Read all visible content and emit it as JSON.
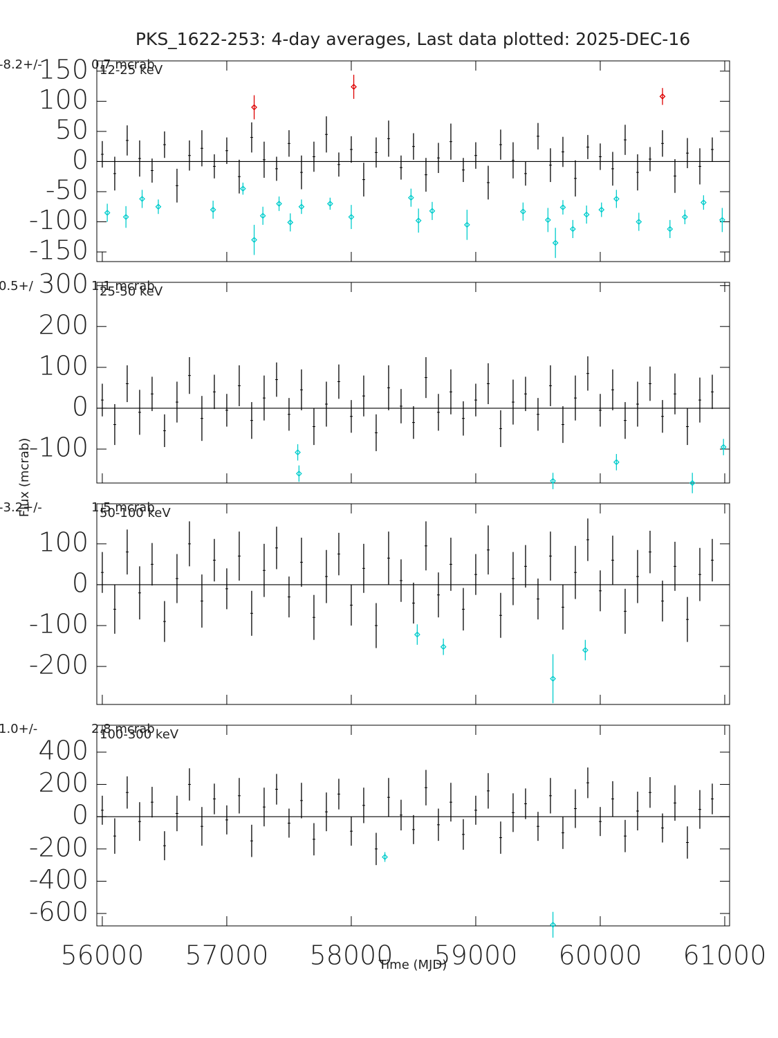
{
  "chart_data": [
    {
      "type": "errorbar",
      "title": "PKS_1622-253:  4-day averages,  Last data plotted: 2025-DEC-16",
      "ylabel": "Flux (mcrab)",
      "band": "12-25 keV",
      "stat_value": "-8.2+/-",
      "stat_error": "0.7 mcrab",
      "xlim": [
        55956,
        61039
      ],
      "xticks": [
        56000,
        57000,
        58000,
        59000,
        60000,
        61000
      ],
      "ylim": [
        -166,
        167
      ],
      "yticks": [
        -150,
        -100,
        -50,
        0,
        50,
        100,
        150
      ],
      "series": [
        {
          "color": "#000000",
          "marker": "none",
          "x": [
            56000,
            56100,
            56200,
            56300,
            56400,
            56500,
            56600,
            56700,
            56800,
            56900,
            57000,
            57100,
            57200,
            57300,
            57400,
            57500,
            57600,
            57700,
            57800,
            57900,
            58000,
            58100,
            58200,
            58300,
            58400,
            58500,
            58600,
            58700,
            58800,
            58900,
            59000,
            59100,
            59200,
            59300,
            59400,
            59500,
            59600,
            59700,
            59800,
            59900,
            60000,
            60100,
            60200,
            60300,
            60400,
            60500,
            60600,
            60700,
            60800,
            60900
          ],
          "values": [
            12,
            -20,
            35,
            5,
            -15,
            28,
            -40,
            10,
            22,
            -8,
            18,
            -25,
            40,
            3,
            -12,
            30,
            -18,
            8,
            45,
            -5,
            20,
            -30,
            15,
            38,
            -10,
            25,
            -22,
            6,
            33,
            -14,
            10,
            -35,
            28,
            2,
            -20,
            42,
            -6,
            16,
            -28,
            24,
            8,
            -12,
            36,
            -18,
            4,
            30,
            -24,
            14,
            -8,
            20
          ],
          "errors": [
            22,
            28,
            25,
            30,
            20,
            22,
            28,
            25,
            30,
            20,
            22,
            28,
            25,
            30,
            20,
            22,
            28,
            25,
            30,
            20,
            22,
            28,
            25,
            30,
            20,
            22,
            28,
            25,
            30,
            20,
            22,
            28,
            25,
            30,
            20,
            22,
            28,
            25,
            30,
            20,
            22,
            28,
            25,
            30,
            20,
            22,
            28,
            25,
            30,
            20
          ]
        },
        {
          "color": "#00cccc",
          "marker": "diamond",
          "x": [
            56040,
            56190,
            56320,
            56450,
            56890,
            57130,
            57220,
            57290,
            57420,
            57510,
            57600,
            57830,
            58000,
            58480,
            58540,
            58650,
            58930,
            59380,
            59580,
            59640,
            59700,
            59780,
            59890,
            60010,
            60130,
            60310,
            60560,
            60680,
            60830,
            60980
          ],
          "values": [
            -85,
            -92,
            -62,
            -75,
            -80,
            -45,
            -130,
            -90,
            -70,
            -101,
            -75,
            -70,
            -92,
            -60,
            -98,
            -82,
            -105,
            -83,
            -97,
            -135,
            -76,
            -112,
            -88,
            -80,
            -62,
            -100,
            -112,
            -92,
            -68,
            -97
          ],
          "errors": [
            15,
            18,
            15,
            12,
            15,
            10,
            25,
            15,
            12,
            15,
            12,
            10,
            20,
            15,
            20,
            15,
            25,
            15,
            20,
            25,
            12,
            15,
            15,
            12,
            15,
            15,
            15,
            12,
            12,
            20
          ]
        },
        {
          "color": "#dd0000",
          "marker": "diamond",
          "x": [
            57220,
            58020,
            60500
          ],
          "values": [
            90,
            124,
            108
          ],
          "errors": [
            20,
            20,
            14
          ]
        }
      ]
    },
    {
      "type": "errorbar",
      "band": "25-50 keV",
      "stat_value": "0.5+/",
      "stat_error": "1.1 mcrab",
      "xlim": [
        55956,
        61039
      ],
      "xticks": [
        56000,
        57000,
        58000,
        59000,
        60000,
        61000
      ],
      "ylim": [
        -183,
        308
      ],
      "yticks": [
        -100,
        0,
        100,
        200,
        300
      ],
      "series": [
        {
          "color": "#000000",
          "marker": "none",
          "x": [
            56000,
            56100,
            56200,
            56300,
            56400,
            56500,
            56600,
            56700,
            56800,
            56900,
            57000,
            57100,
            57200,
            57300,
            57400,
            57500,
            57600,
            57700,
            57800,
            57900,
            58000,
            58100,
            58200,
            58300,
            58400,
            58500,
            58600,
            58700,
            58800,
            58900,
            59000,
            59100,
            59200,
            59300,
            59400,
            59500,
            59600,
            59700,
            59800,
            59900,
            60000,
            60100,
            60200,
            60300,
            60400,
            60500,
            60600,
            60700,
            60800,
            60900
          ],
          "values": [
            20,
            -40,
            60,
            -10,
            35,
            -55,
            15,
            80,
            -25,
            40,
            -5,
            55,
            -30,
            25,
            70,
            -15,
            45,
            -45,
            10,
            65,
            -20,
            30,
            -60,
            50,
            5,
            -35,
            75,
            -10,
            40,
            -25,
            20,
            60,
            -50,
            15,
            35,
            -15,
            55,
            -40,
            25,
            85,
            -5,
            45,
            -30,
            10,
            60,
            -20,
            35,
            -45,
            20,
            40
          ],
          "errors": [
            40,
            50,
            45,
            55,
            42,
            40,
            50,
            45,
            55,
            42,
            40,
            50,
            45,
            55,
            42,
            40,
            50,
            45,
            55,
            42,
            40,
            50,
            45,
            55,
            42,
            40,
            50,
            45,
            55,
            42,
            40,
            50,
            45,
            55,
            42,
            40,
            50,
            45,
            55,
            42,
            40,
            50,
            45,
            55,
            42,
            40,
            50,
            45,
            55,
            42
          ]
        },
        {
          "color": "#00cccc",
          "marker": "diamond",
          "x": [
            57570,
            57580,
            59620,
            60130,
            60740,
            60990
          ],
          "values": [
            -108,
            -160,
            -178,
            -132,
            -183,
            -95
          ],
          "errors": [
            20,
            20,
            20,
            20,
            25,
            20
          ]
        }
      ]
    },
    {
      "type": "errorbar",
      "band": "50-100 keV",
      "stat_value": "-3.2+/-",
      "stat_error": "1.5 mcrab",
      "xlim": [
        55956,
        61039
      ],
      "xticks": [
        56000,
        57000,
        58000,
        59000,
        60000,
        61000
      ],
      "ylim": [
        -293,
        198
      ],
      "yticks": [
        -200,
        -100,
        0,
        100
      ],
      "series": [
        {
          "color": "#000000",
          "marker": "none",
          "x": [
            56000,
            56100,
            56200,
            56300,
            56400,
            56500,
            56600,
            56700,
            56800,
            56900,
            57000,
            57100,
            57200,
            57300,
            57400,
            57500,
            57600,
            57700,
            57800,
            57900,
            58000,
            58100,
            58200,
            58300,
            58400,
            58500,
            58600,
            58700,
            58800,
            58900,
            59000,
            59100,
            59200,
            59300,
            59400,
            59500,
            59600,
            59700,
            59800,
            59900,
            60000,
            60100,
            60200,
            60300,
            60400,
            60500,
            60600,
            60700,
            60800,
            60900
          ],
          "values": [
            30,
            -60,
            80,
            -20,
            50,
            -90,
            15,
            100,
            -40,
            60,
            -10,
            70,
            -70,
            35,
            90,
            -30,
            55,
            -80,
            20,
            75,
            -50,
            40,
            -100,
            65,
            10,
            -45,
            95,
            -25,
            50,
            -60,
            25,
            85,
            -75,
            15,
            45,
            -35,
            70,
            -55,
            30,
            110,
            -15,
            60,
            -65,
            20,
            80,
            -40,
            45,
            -85,
            25,
            60
          ],
          "errors": [
            50,
            60,
            55,
            65,
            52,
            50,
            60,
            55,
            65,
            52,
            50,
            60,
            55,
            65,
            52,
            50,
            60,
            55,
            65,
            52,
            50,
            60,
            55,
            65,
            52,
            50,
            60,
            55,
            65,
            52,
            50,
            60,
            55,
            65,
            52,
            50,
            60,
            55,
            65,
            52,
            50,
            60,
            55,
            65,
            52,
            50,
            60,
            55,
            65,
            52
          ]
        },
        {
          "color": "#00cccc",
          "marker": "diamond",
          "x": [
            58530,
            58740,
            59620,
            59880
          ],
          "values": [
            -122,
            -152,
            -230,
            -160
          ],
          "errors": [
            25,
            20,
            60,
            25
          ]
        }
      ]
    },
    {
      "type": "errorbar",
      "band": "100-300 keV",
      "stat_value": "1.0+/-",
      "stat_error": "2.8 mcrab",
      "xlabel": "Time (MJD)",
      "xlim": [
        55956,
        61039
      ],
      "xticks": [
        56000,
        57000,
        58000,
        59000,
        60000,
        61000
      ],
      "ylim": [
        -677,
        567
      ],
      "yticks": [
        -600,
        -400,
        -200,
        0,
        200,
        400
      ],
      "series": [
        {
          "color": "#000000",
          "marker": "none",
          "x": [
            56000,
            56100,
            56200,
            56300,
            56400,
            56500,
            56600,
            56700,
            56800,
            56900,
            57000,
            57100,
            57200,
            57300,
            57400,
            57500,
            57600,
            57700,
            57800,
            57900,
            58000,
            58100,
            58200,
            58300,
            58400,
            58500,
            58600,
            58700,
            58800,
            58900,
            59000,
            59100,
            59200,
            59300,
            59400,
            59500,
            59600,
            59700,
            59800,
            59900,
            60000,
            60100,
            60200,
            60300,
            60400,
            60500,
            60600,
            60700,
            60800,
            60900
          ],
          "values": [
            40,
            -120,
            150,
            -30,
            90,
            -180,
            20,
            200,
            -60,
            110,
            -20,
            130,
            -150,
            60,
            170,
            -40,
            100,
            -140,
            30,
            140,
            -90,
            70,
            -200,
            120,
            10,
            -80,
            180,
            -50,
            90,
            -110,
            40,
            160,
            -130,
            25,
            80,
            -60,
            130,
            -100,
            50,
            210,
            -30,
            110,
            -120,
            35,
            150,
            -70,
            85,
            -160,
            45,
            110
          ],
          "errors": [
            90,
            110,
            100,
            120,
            95,
            90,
            110,
            100,
            120,
            95,
            90,
            110,
            100,
            120,
            95,
            90,
            110,
            100,
            120,
            95,
            90,
            110,
            100,
            120,
            95,
            90,
            110,
            100,
            120,
            95,
            90,
            110,
            100,
            120,
            95,
            90,
            110,
            100,
            120,
            95,
            90,
            110,
            100,
            120,
            95,
            90,
            110,
            100,
            120,
            95
          ]
        },
        {
          "color": "#00cccc",
          "marker": "diamond",
          "x": [
            58270,
            59620
          ],
          "values": [
            -250,
            -670
          ],
          "errors": [
            30,
            80
          ]
        }
      ]
    }
  ]
}
